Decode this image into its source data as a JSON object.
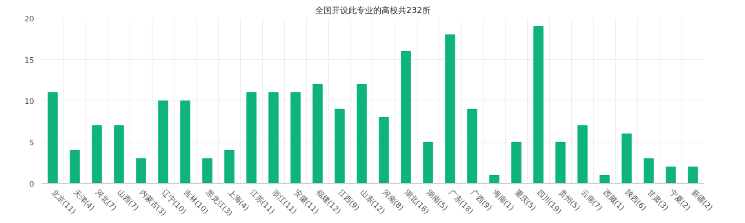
{
  "chart_data": {
    "type": "bar",
    "title": "全国开设此专业的高校共232所",
    "categories": [
      "北京(11)",
      "天津(4)",
      "河北(7)",
      "山西(7)",
      "内蒙古(3)",
      "辽宁(10)",
      "吉林(10)",
      "黑龙江(3)",
      "上海(4)",
      "江苏(11)",
      "浙江(11)",
      "安徽(11)",
      "福建(12)",
      "江西(9)",
      "山东(12)",
      "河南(8)",
      "湖北(16)",
      "湖南(5)",
      "广东(18)",
      "广西(9)",
      "海南(1)",
      "重庆(5)",
      "四川(19)",
      "贵州(5)",
      "云南(7)",
      "西藏(1)",
      "陕西(6)",
      "甘肃(3)",
      "宁夏(2)",
      "新疆(2)"
    ],
    "values": [
      11,
      4,
      7,
      7,
      3,
      10,
      10,
      3,
      4,
      11,
      11,
      11,
      12,
      9,
      12,
      8,
      16,
      5,
      18,
      9,
      1,
      5,
      19,
      5,
      7,
      1,
      6,
      3,
      2,
      2
    ],
    "color": "#0fb47a",
    "ylim": [
      0,
      20
    ],
    "yticks": [
      0,
      5,
      10,
      15,
      20
    ],
    "grid": true
  }
}
